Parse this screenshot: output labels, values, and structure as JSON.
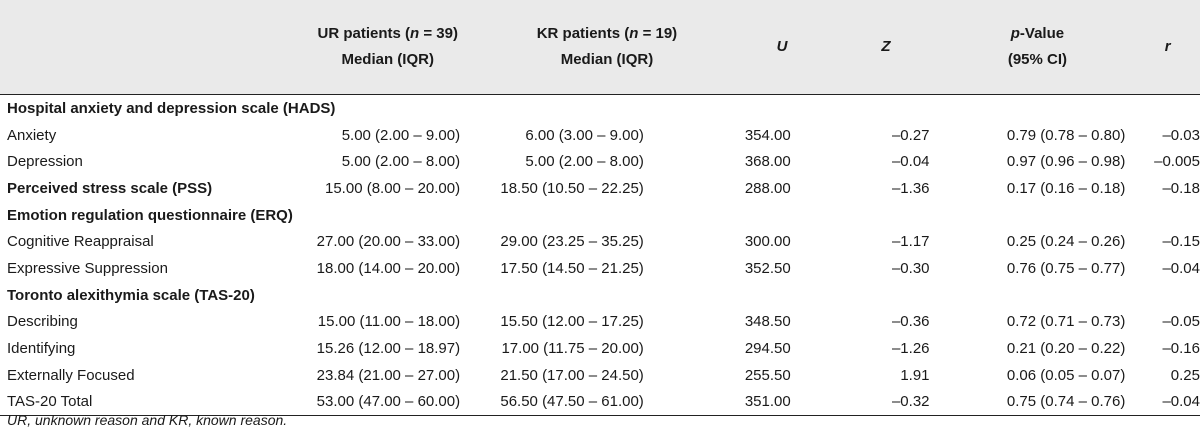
{
  "header": {
    "col_ur_line1_pre": "UR patients (",
    "col_ur_line1_n": "n",
    "col_ur_line1_post": " = 39)",
    "col_ur_line2": "Median (IQR)",
    "col_kr_line1_pre": "KR patients (",
    "col_kr_line1_n": "n",
    "col_kr_line1_post": " = 19)",
    "col_kr_line2": "Median (IQR)",
    "col_u": "U",
    "col_z": "Z",
    "col_p_italic": "p",
    "col_p_rest": "-Value",
    "col_p_line2": "(95% CI)",
    "col_r": "r"
  },
  "rows": [
    {
      "type": "section",
      "label": "Hospital anxiety and depression scale (HADS)"
    },
    {
      "type": "data",
      "label": "Anxiety",
      "ur": "5.00 (2.00 – 9.00)",
      "kr": "6.00 (3.00 – 9.00)",
      "u": "354.00",
      "z": "–0.27",
      "p": "0.79 (0.78 – 0.80)",
      "r": "–0.03"
    },
    {
      "type": "data",
      "label": "Depression",
      "ur": "5.00 (2.00 – 8.00)",
      "kr": "5.00 (2.00 – 8.00)",
      "u": "368.00",
      "z": "–0.04",
      "p": "0.97 (0.96 – 0.98)",
      "r": "–0.005"
    },
    {
      "type": "data-bold",
      "label": "Perceived stress scale  (PSS)",
      "ur": "15.00 (8.00 – 20.00)",
      "kr": "18.50 (10.50 – 22.25)",
      "u": "288.00",
      "z": "–1.36",
      "p": "0.17 (0.16 – 0.18)",
      "r": "–0.18"
    },
    {
      "type": "section",
      "label": "Emotion regulation questionnaire (ERQ)"
    },
    {
      "type": "data",
      "label": "Cognitive Reappraisal",
      "ur": "27.00 (20.00 – 33.00)",
      "kr": "29.00 (23.25 – 35.25)",
      "u": "300.00",
      "z": "–1.17",
      "p": "0.25 (0.24 – 0.26)",
      "r": "–0.15"
    },
    {
      "type": "data",
      "label": "Expressive Suppression",
      "ur": "18.00 (14.00 – 20.00)",
      "kr": "17.50 (14.50 – 21.25)",
      "u": "352.50",
      "z": "–0.30",
      "p": "0.76 (0.75 – 0.77)",
      "r": "–0.04"
    },
    {
      "type": "section",
      "label": "Toronto alexithymia scale (TAS-20)"
    },
    {
      "type": "data",
      "label": "Describing",
      "ur": "15.00 (11.00 – 18.00)",
      "kr": "15.50 (12.00 – 17.25)",
      "u": "348.50",
      "z": "–0.36",
      "p": "0.72 (0.71 – 0.73)",
      "r": "–0.05"
    },
    {
      "type": "data",
      "label": "Identifying",
      "ur": "15.26 (12.00 – 18.97)",
      "kr": "17.00 (11.75 – 20.00)",
      "u": "294.50",
      "z": "–1.26",
      "p": "0.21 (0.20 – 0.22)",
      "r": "–0.16"
    },
    {
      "type": "data",
      "label": "Externally Focused",
      "ur": "23.84 (21.00 – 27.00)",
      "kr": "21.50 (17.00 – 24.50)",
      "u": "255.50",
      "z": "1.91",
      "p": "0.06 (0.05 – 0.07)",
      "r": "0.25"
    },
    {
      "type": "data",
      "label": "TAS-20 Total",
      "ur": "53.00 (47.00 – 60.00)",
      "kr": "56.50 (47.50 – 61.00)",
      "u": "351.00",
      "z": "–0.32",
      "p": "0.75 (0.74 – 0.76)",
      "r": "–0.04"
    }
  ],
  "footnote": "UR, unknown reason and KR, known reason."
}
